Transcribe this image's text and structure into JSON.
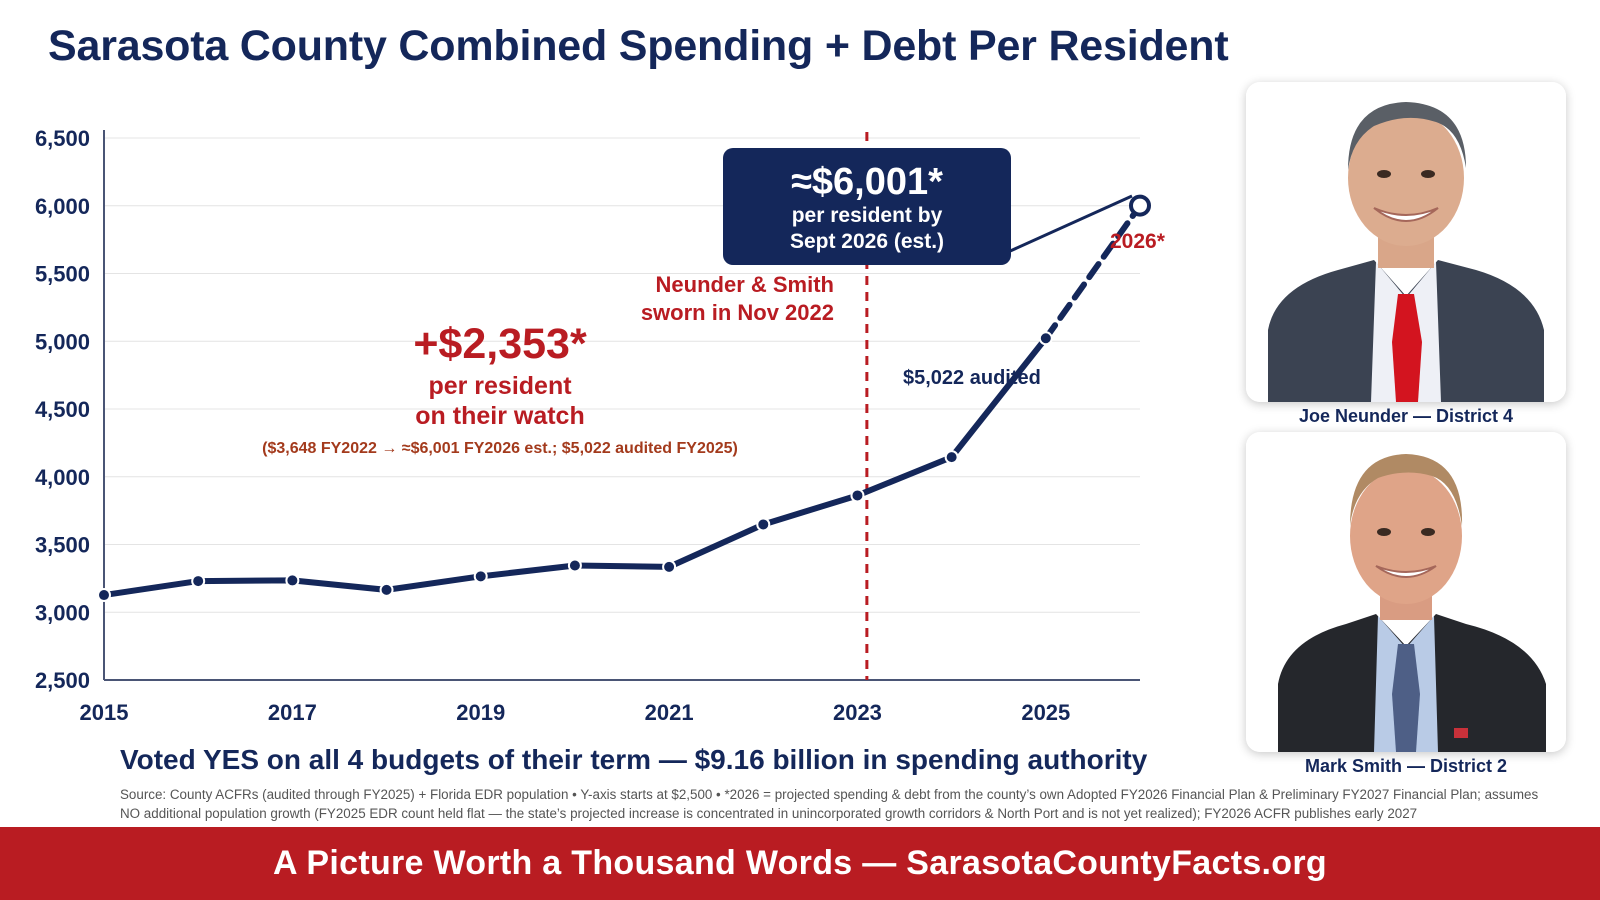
{
  "title": "Sarasota County Combined Spending + Debt Per Resident",
  "chart_data": {
    "type": "line",
    "x": [
      2015,
      2016,
      2017,
      2018,
      2019,
      2020,
      2021,
      2022,
      2023,
      2024,
      2025,
      2026
    ],
    "series": [
      {
        "values": [
          3127,
          3230,
          3235,
          3165,
          3265,
          3345,
          3335,
          3648,
          3862,
          4145,
          5022,
          6001
        ]
      }
    ],
    "projected_from": 2025,
    "ylim": [
      2500,
      6500
    ],
    "xlim": [
      2015,
      2026
    ],
    "yticks": [
      2500,
      3000,
      3500,
      4000,
      4500,
      5000,
      5500,
      6000,
      6500
    ],
    "ytick_labels": [
      "2,500",
      "3,000",
      "3,500",
      "4,000",
      "4,500",
      "5,000",
      "5,500",
      "6,000",
      "6,500"
    ],
    "xticks": [
      2015,
      2017,
      2019,
      2021,
      2023,
      2025
    ],
    "xtick_labels": [
      "2015",
      "2017",
      "2019",
      "2021",
      "2023",
      "2025"
    ],
    "grid": true,
    "vline": {
      "x": 2023.1,
      "label_line1": "Neunder & Smith",
      "label_line2": "sworn in Nov 2022"
    },
    "callout": {
      "value": "≈$6,001*",
      "line1": "per resident by",
      "line2": "Sept 2026 (est.)"
    },
    "point_label_2026": "2026*",
    "point_label_2025": "$5,022 audited",
    "increase": {
      "value": "+$2,353*",
      "line1": "per resident",
      "line2": "on their watch",
      "detail": "($3,648 FY2022 → ≈$6,001 FY2026 est.; $5,022 audited FY2025)"
    }
  },
  "people": [
    {
      "caption": "Joe Neunder — District 4"
    },
    {
      "caption": "Mark Smith — District 2"
    }
  ],
  "voted_text": "Voted YES on all 4 budgets of their term — $9.16 billion in spending authority",
  "source_text": "Source: County ACFRs (audited through FY2025) + Florida EDR population • Y-axis starts at $2,500 • *2026 = projected spending & debt from the county’s own Adopted FY2026 Financial Plan & Preliminary FY2027 Financial Plan; assumes NO additional population growth (FY2025 EDR count held flat — the state’s projected increase is concentrated in unincorporated growth corridors & North Port and is not yet realized); FY2026 ACFR publishes early 2027",
  "footer": "A Picture Worth a Thousand Words — SarasotaCountyFacts.org",
  "colors": {
    "navy": "#14275a",
    "red": "#b91c22",
    "detail_red": "#a33a1c"
  }
}
